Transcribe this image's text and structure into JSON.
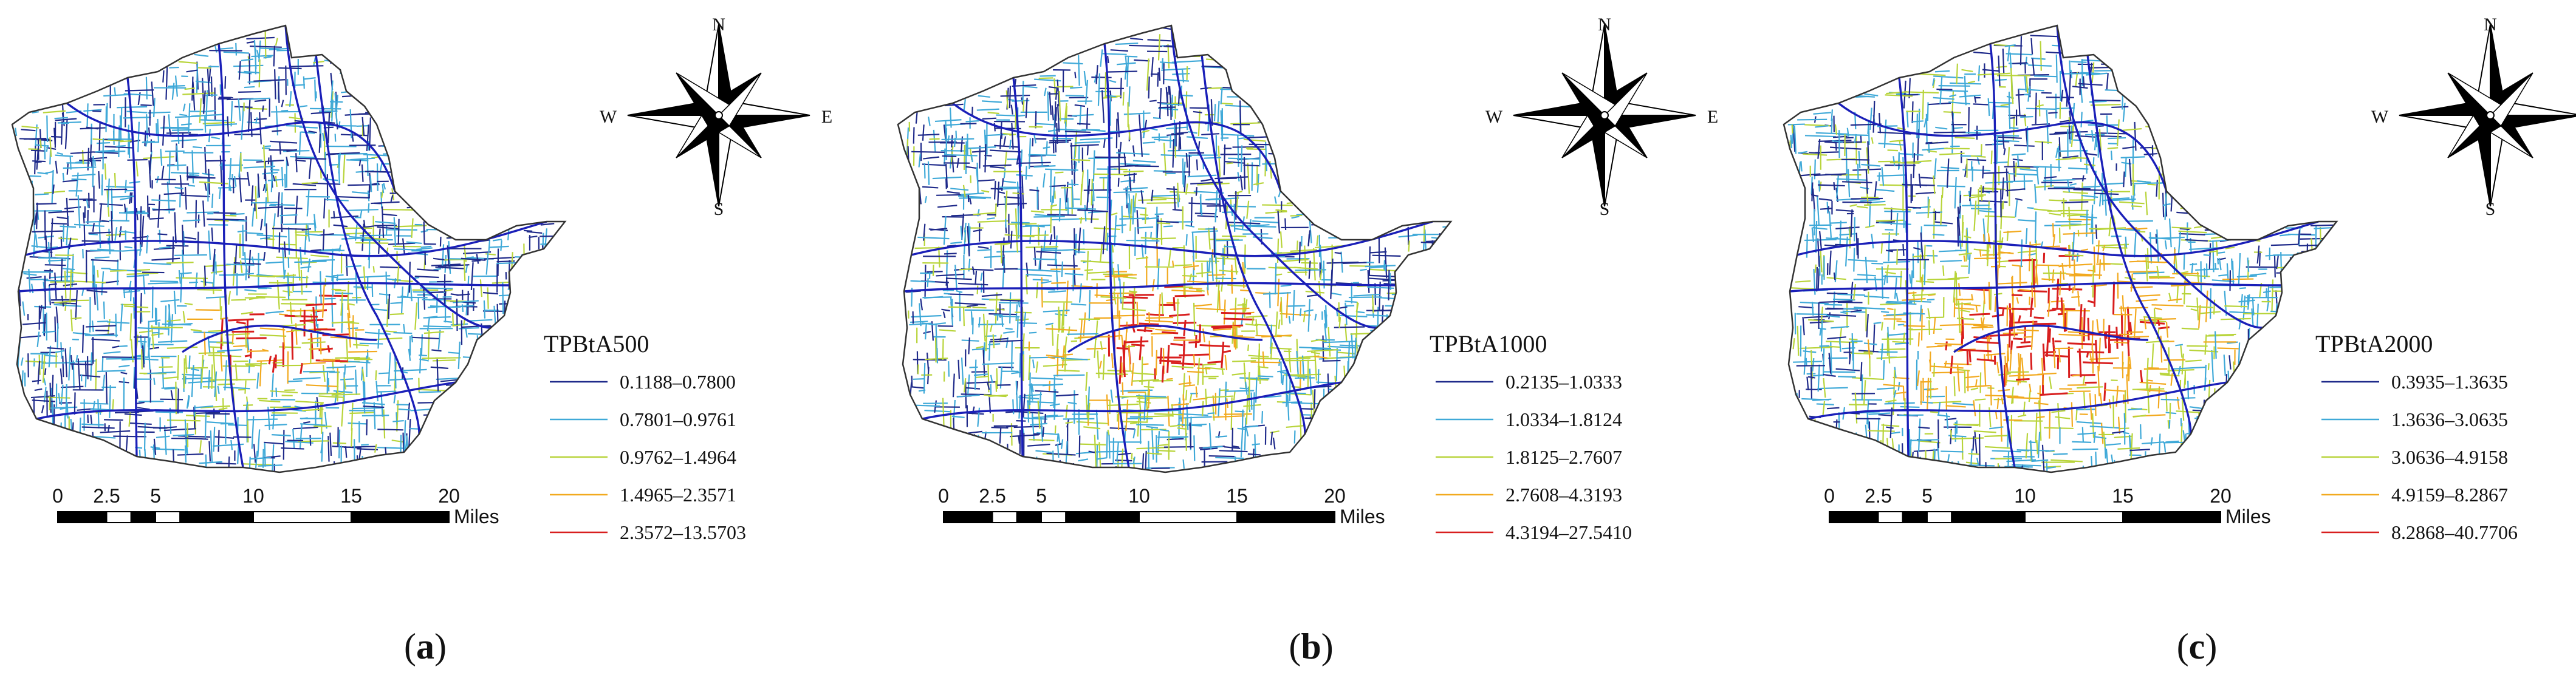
{
  "panels": [
    {
      "label": "(a)",
      "label_letter": "a",
      "legend_title": "TPBtA500",
      "legend_items": [
        "0.1188–0.7800",
        "0.7801–0.9761",
        "0.9762–1.4964",
        "1.4965–2.3571",
        "2.3572–13.5703"
      ],
      "intensity": 0.55
    },
    {
      "label": "(b)",
      "label_letter": "b",
      "legend_title": "TPBtA1000",
      "legend_items": [
        "0.2135–1.0333",
        "1.0334–1.8124",
        "1.8125–2.7607",
        "2.7608–4.3193",
        "4.3194–27.5410"
      ],
      "intensity": 0.75
    },
    {
      "label": "(c)",
      "label_letter": "c",
      "legend_title": "TPBtA2000",
      "legend_items": [
        "0.3935–1.3635",
        "1.3636–3.0635",
        "3.0636–4.9158",
        "4.9159–8.2867",
        "8.2868–40.7706"
      ],
      "intensity": 1.0
    }
  ],
  "legend_colors": [
    "#1f2a8a",
    "#3fa9d8",
    "#b8d43a",
    "#f2a91e",
    "#d81e1e"
  ],
  "compass": {
    "north": "N",
    "south": "S",
    "east": "E",
    "west": "W"
  },
  "scale_bar": {
    "ticks": [
      "0",
      "2.5",
      "5",
      "10",
      "15",
      "20"
    ],
    "unit": "Miles"
  }
}
